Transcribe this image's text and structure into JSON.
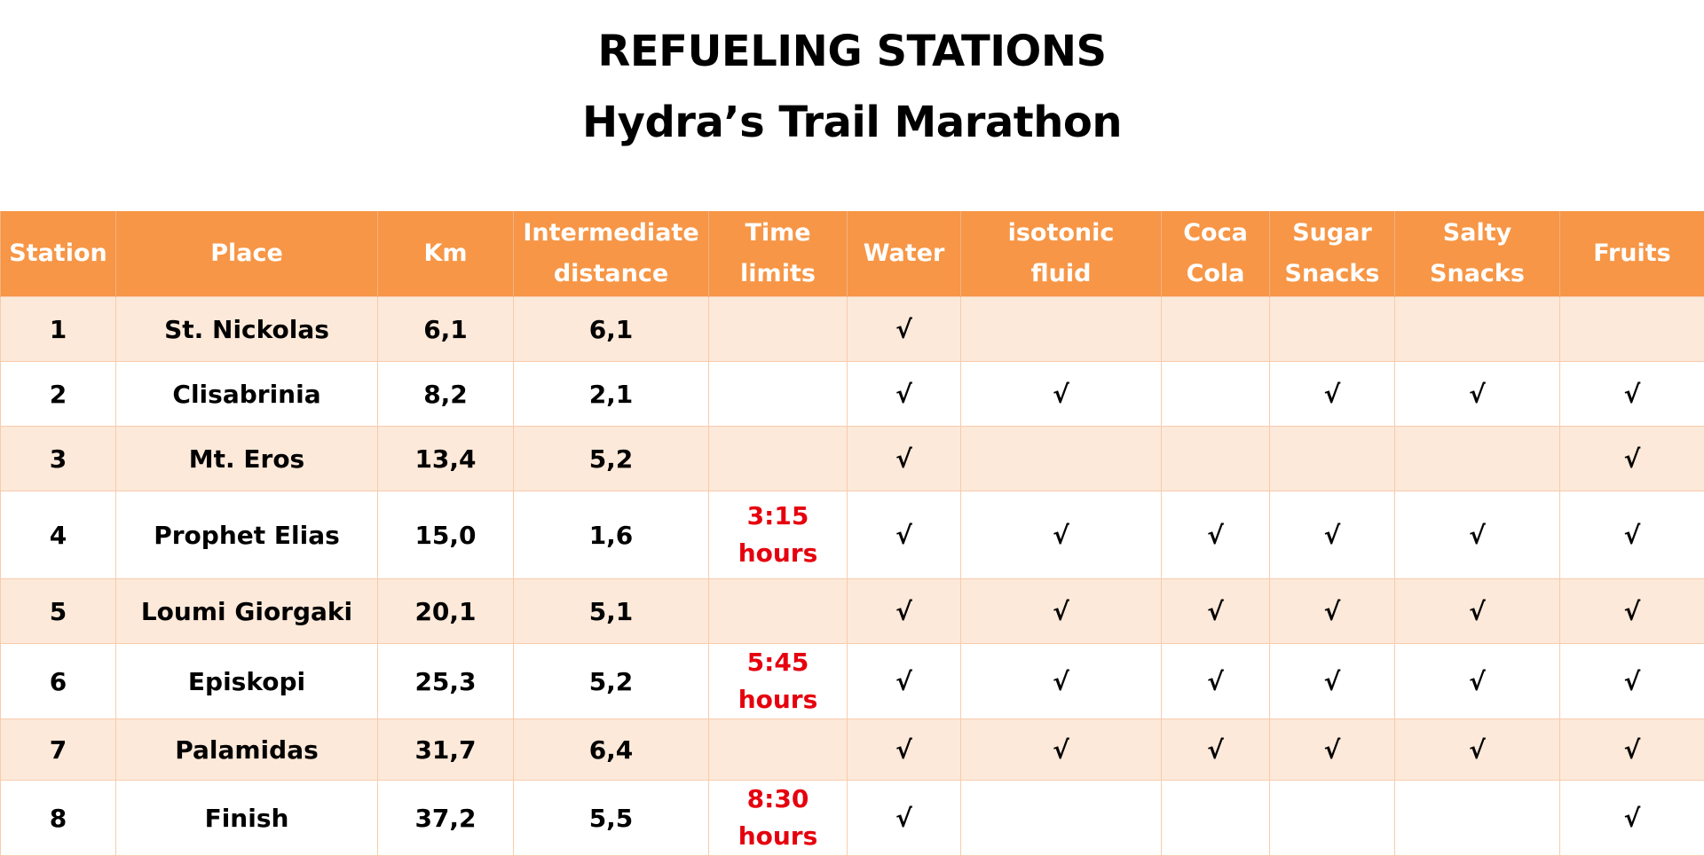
{
  "document": {
    "title": "REFUELING STATIONS",
    "subtitle": "Hydra’s Trail Marathon"
  },
  "table": {
    "columns": [
      "Station",
      "Place",
      "Km",
      "Intermediate\ndistance",
      "Time\nlimits",
      "Water",
      "isotonic\nfluid",
      "Coca\nCola",
      "Sugar\nSnacks",
      "Salty\nSnacks",
      "Fruits"
    ],
    "rows": [
      {
        "station": "1",
        "place": "St. Nickolas",
        "km": "6,1",
        "intermediate": "6,1",
        "time_limit": "",
        "water": "√",
        "isotonic": "",
        "coca_cola": "",
        "sugar_snacks": "",
        "salty_snacks": "",
        "fruits": ""
      },
      {
        "station": "2",
        "place": "Clisabrinia",
        "km": "8,2",
        "intermediate": "2,1",
        "time_limit": "",
        "water": "√",
        "isotonic": "√",
        "coca_cola": "",
        "sugar_snacks": "√",
        "salty_snacks": "√",
        "fruits": "√"
      },
      {
        "station": "3",
        "place": "Mt. Eros",
        "km": "13,4",
        "intermediate": "5,2",
        "time_limit": "",
        "water": "√",
        "isotonic": "",
        "coca_cola": "",
        "sugar_snacks": "",
        "salty_snacks": "",
        "fruits": "√"
      },
      {
        "station": "4",
        "place": "Prophet Elias",
        "km": "15,0",
        "intermediate": "1,6",
        "time_limit": "3:15\nhours",
        "water": "√",
        "isotonic": "√",
        "coca_cola": "√",
        "sugar_snacks": "√",
        "salty_snacks": "√",
        "fruits": "√"
      },
      {
        "station": "5",
        "place": "Loumi Giorgaki",
        "km": "20,1",
        "intermediate": "5,1",
        "time_limit": "",
        "water": "√",
        "isotonic": "√",
        "coca_cola": "√",
        "sugar_snacks": "√",
        "salty_snacks": "√",
        "fruits": "√"
      },
      {
        "station": "6",
        "place": "Episkopi",
        "km": "25,3",
        "intermediate": "5,2",
        "time_limit": "5:45\nhours",
        "water": "√",
        "isotonic": "√",
        "coca_cola": "√",
        "sugar_snacks": "√",
        "salty_snacks": "√",
        "fruits": "√"
      },
      {
        "station": "7",
        "place": "Palamidas",
        "km": "31,7",
        "intermediate": "6,4",
        "time_limit": "",
        "water": "√",
        "isotonic": "√",
        "coca_cola": "√",
        "sugar_snacks": "√",
        "salty_snacks": "√",
        "fruits": "√"
      },
      {
        "station": "8",
        "place": "Finish",
        "km": "37,2",
        "intermediate": "5,5",
        "time_limit": "8:30\nhours",
        "water": "√",
        "isotonic": "",
        "coca_cola": "",
        "sugar_snacks": "",
        "salty_snacks": "",
        "fruits": "√"
      }
    ]
  },
  "colors": {
    "header_background": "#f79646",
    "header_text": "#ffffff",
    "row_band": "#fde9d9",
    "time_limit_text": "#e6000e"
  }
}
